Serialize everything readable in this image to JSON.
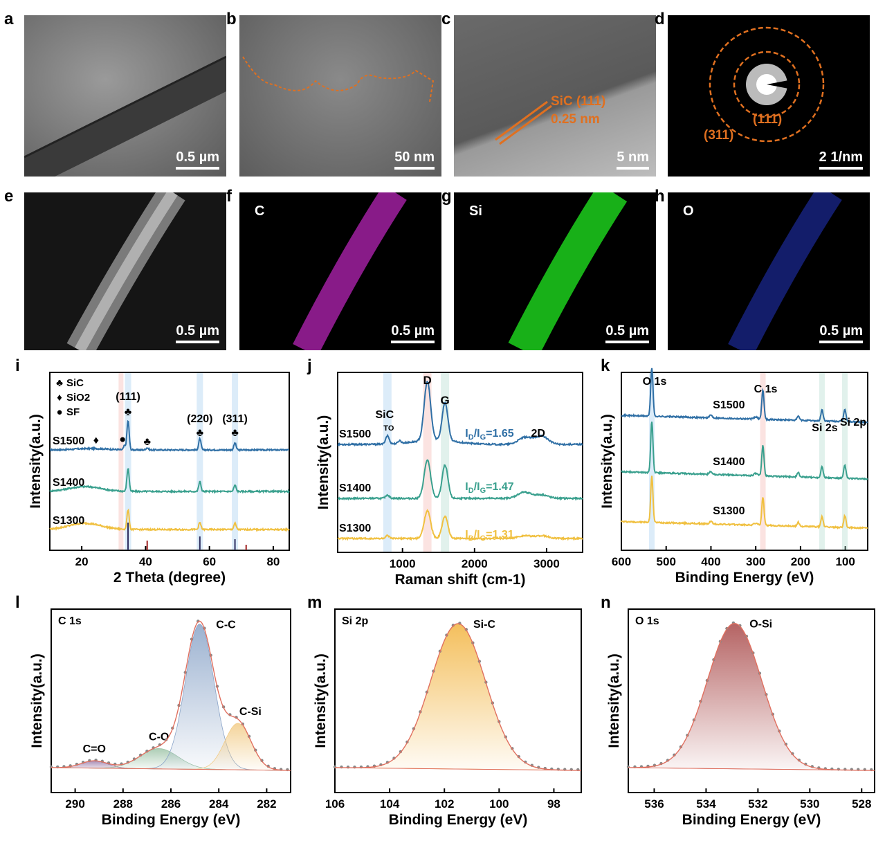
{
  "panels": {
    "a": {
      "letter": "a",
      "scale": "0.5 µm"
    },
    "b": {
      "letter": "b",
      "scale": "50 nm"
    },
    "c": {
      "letter": "c",
      "scale": "5 nm",
      "annotation1": "SiC (111)",
      "annotation2": "0.25 nm"
    },
    "d": {
      "letter": "d",
      "scale": "2 1/nm",
      "ring_outer": "(311)",
      "ring_inner": "(111)"
    },
    "e": {
      "letter": "e",
      "scale": "0.5 µm"
    },
    "f": {
      "letter": "f",
      "scale": "0.5 µm",
      "element": "C",
      "color": "#b020b0"
    },
    "g": {
      "letter": "g",
      "scale": "0.5 µm",
      "element": "Si",
      "color": "#20c020"
    },
    "h": {
      "letter": "h",
      "scale": "0.5 µm",
      "element": "O",
      "color": "#2030c0"
    }
  },
  "colors": {
    "S1500": "#2f6fa5",
    "S1400": "#3aa08e",
    "S1300": "#f0c040",
    "orange": "#e07020"
  },
  "chart_data": [
    {
      "panel": "i",
      "type": "line",
      "xlabel": "2 Theta (degree)",
      "ylabel": "Intensity(a.u.)",
      "xlim": [
        10,
        85
      ],
      "xticks": [
        20,
        40,
        60,
        80
      ],
      "legend": [
        "SiC",
        "SiO2",
        "SF"
      ],
      "peaks": [
        {
          "x": 34.5,
          "label": "(111)"
        },
        {
          "x": 57,
          "label": "(220)"
        },
        {
          "x": 68,
          "label": "(311)"
        }
      ],
      "series": [
        {
          "name": "S1500"
        },
        {
          "name": "S1400"
        },
        {
          "name": "S1300"
        }
      ]
    },
    {
      "panel": "j",
      "type": "line",
      "xlabel": "Raman shift (cm-1)",
      "ylabel": "Intensity(a.u.)",
      "xlim": [
        100,
        3500
      ],
      "xticks": [
        1000,
        2000,
        3000
      ],
      "bands": [
        {
          "x": 790,
          "label": "SiC TO"
        },
        {
          "x": 1345,
          "label": "D"
        },
        {
          "x": 1590,
          "label": "G"
        },
        {
          "x": 2690,
          "label": "2D"
        }
      ],
      "ratios": [
        {
          "series": "S1500",
          "value": "1.65"
        },
        {
          "series": "S1400",
          "value": "1.47"
        },
        {
          "series": "S1300",
          "value": "1.31"
        }
      ],
      "series": [
        {
          "name": "S1500"
        },
        {
          "name": "S1400"
        },
        {
          "name": "S1300"
        }
      ]
    },
    {
      "panel": "k",
      "type": "line",
      "xlabel": "Binding Energy (eV)",
      "ylabel": "Intensity(a.u.)",
      "xlim": [
        600,
        50
      ],
      "xticks": [
        600,
        500,
        400,
        300,
        200,
        100
      ],
      "peaks": [
        {
          "x": 532,
          "label": "O 1s"
        },
        {
          "x": 284,
          "label": "C 1s"
        },
        {
          "x": 152,
          "label": "Si 2s"
        },
        {
          "x": 101,
          "label": "Si 2p"
        }
      ],
      "series": [
        {
          "name": "S1500"
        },
        {
          "name": "S1400"
        },
        {
          "name": "S1300"
        }
      ]
    },
    {
      "panel": "l",
      "type": "area",
      "title": "C 1s",
      "xlabel": "Binding Energy (eV)",
      "ylabel": "Intensity(a.u.)",
      "xlim": [
        291,
        281
      ],
      "xticks": [
        290,
        288,
        286,
        284,
        282
      ],
      "components": [
        {
          "name": "C=O",
          "center": 289.2,
          "height": 0.05
        },
        {
          "name": "C-O",
          "center": 286.5,
          "height": 0.14
        },
        {
          "name": "C-C",
          "center": 284.8,
          "height": 1.0
        },
        {
          "name": "C-Si",
          "center": 283.2,
          "height": 0.32
        }
      ]
    },
    {
      "panel": "m",
      "type": "area",
      "title": "Si 2p",
      "xlabel": "Binding Energy (eV)",
      "ylabel": "Intensity(a.u.)",
      "xlim": [
        106,
        97
      ],
      "xticks": [
        106,
        104,
        102,
        100,
        98
      ],
      "components": [
        {
          "name": "Si-C",
          "center": 101.5,
          "height": 1.0
        }
      ]
    },
    {
      "panel": "n",
      "type": "area",
      "title": "O 1s",
      "xlabel": "Binding Energy (eV)",
      "ylabel": "Intensity(a.u.)",
      "xlim": [
        537,
        527.5
      ],
      "xticks": [
        536,
        534,
        532,
        530,
        528
      ],
      "components": [
        {
          "name": "O-Si",
          "center": 532.9,
          "height": 1.0
        }
      ]
    }
  ]
}
